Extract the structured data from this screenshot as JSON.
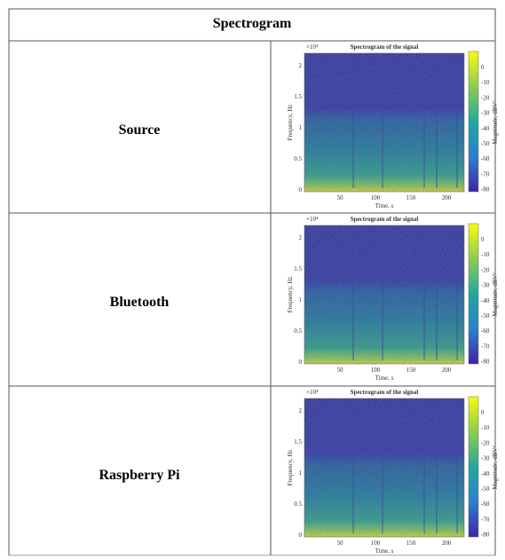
{
  "table": {
    "header": "Spectrogram",
    "rows": [
      {
        "label": "Source",
        "plot": {
          "multiplier": "×10⁴",
          "title": "Spectrogram of the signal",
          "xlabel": "Time, s",
          "ylabel": "Frequency, Hz",
          "colorbar_label": "Magnitude, dBV²",
          "xticks": [
            "50",
            "100",
            "150",
            "200"
          ],
          "yticks": [
            "0",
            "0.5",
            "1",
            "1.5",
            "2"
          ],
          "colorbar_ticks": [
            "0",
            "-10",
            "-20",
            "-30",
            "-40",
            "-50",
            "-60",
            "-70",
            "-80"
          ]
        }
      },
      {
        "label": "Bluetooth",
        "plot": {
          "multiplier": "×10⁴",
          "title": "Spectrogram of the signal",
          "xlabel": "Time, s",
          "ylabel": "Frequency, Hz",
          "colorbar_label": "Magnitude, dBV²",
          "xticks": [
            "50",
            "100",
            "150",
            "200"
          ],
          "yticks": [
            "0",
            "0.5",
            "1",
            "1.5",
            "2"
          ],
          "colorbar_ticks": [
            "0",
            "-10",
            "-20",
            "-30",
            "-40",
            "-50",
            "-60",
            "-70",
            "-80"
          ]
        }
      },
      {
        "label": "Raspberry Pi",
        "plot": {
          "multiplier": "×10⁴",
          "title": "Spectrogram of the signal",
          "xlabel": "Time, s",
          "ylabel": "Frequency, Hz",
          "colorbar_label": "Magnitude, dBV²",
          "xticks": [
            "50",
            "100",
            "150",
            "200"
          ],
          "yticks": [
            "0",
            "0.5",
            "1",
            "1.5",
            "2"
          ],
          "colorbar_ticks": [
            "0",
            "-10",
            "-20",
            "-30",
            "-40",
            "-50",
            "-60",
            "-70",
            "-80"
          ]
        }
      }
    ]
  }
}
